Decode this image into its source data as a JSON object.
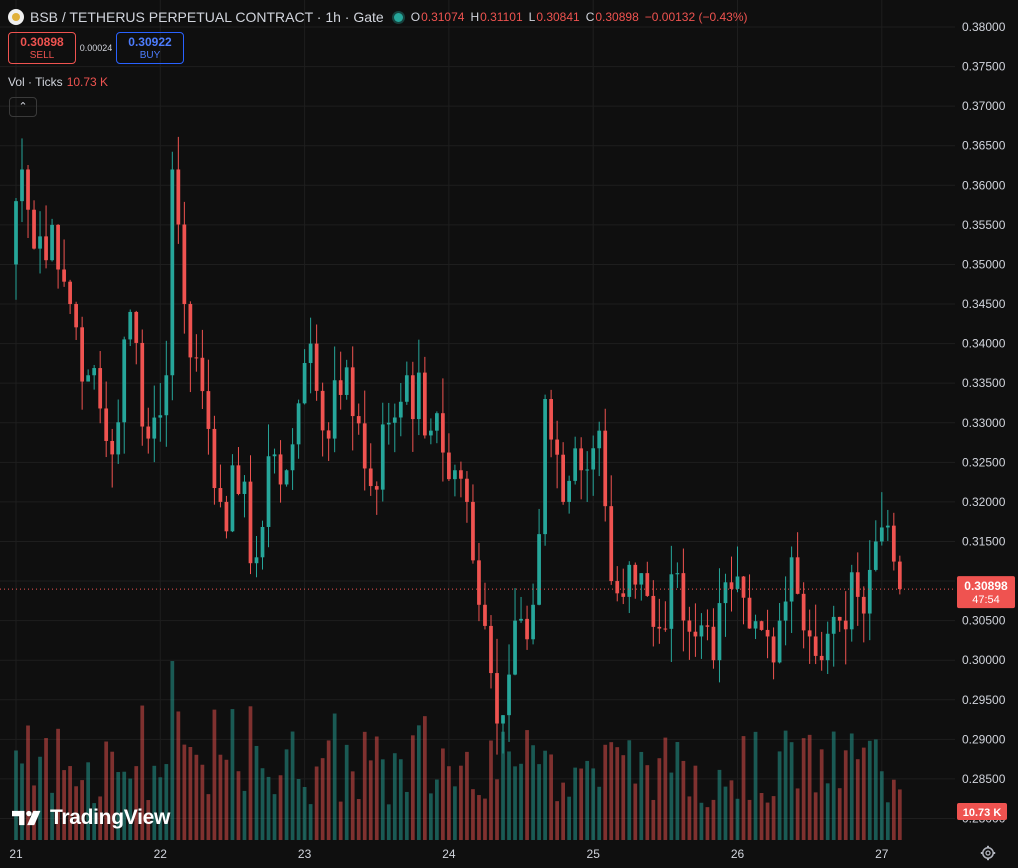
{
  "header": {
    "title": "BSB / TETHERUS PERPETUAL CONTRACT · 1h · Gate",
    "ohlc": [
      {
        "key": "O",
        "value": "0.31074"
      },
      {
        "key": "H",
        "value": "0.31101"
      },
      {
        "key": "L",
        "value": "0.30841"
      },
      {
        "key": "C",
        "value": "0.30898"
      }
    ],
    "change": "−0.00132 (−0.43%)"
  },
  "trade": {
    "sell_price": "0.30898",
    "sell_label": "SELL",
    "spread": "0.00024",
    "buy_price": "0.30922",
    "buy_label": "BUY"
  },
  "volume_legend": {
    "label": "Vol · Ticks",
    "value": "10.73 K"
  },
  "collapse_glyph": "⌃",
  "branding": "TradingView",
  "icons": {
    "symbol": "bsb-coin-icon",
    "settings": "gear-icon"
  },
  "colors": {
    "up": "#26a69a",
    "down": "#ef5350",
    "background": "#0f0f0f",
    "grid": "#1e1e1e"
  },
  "chart_data": {
    "type": "candlestick",
    "ylim": [
      0.28,
      0.38
    ],
    "y_ticks": [
      "0.38000",
      "0.37500",
      "0.37000",
      "0.36500",
      "0.36000",
      "0.35500",
      "0.35000",
      "0.34500",
      "0.34000",
      "0.33500",
      "0.33000",
      "0.32500",
      "0.32000",
      "0.31500",
      "0.31000",
      "0.30500",
      "0.30000",
      "0.29500",
      "0.29000",
      "0.28500",
      "0.28000"
    ],
    "x_ticks": [
      "21",
      "22",
      "23",
      "24",
      "25",
      "26",
      "27"
    ],
    "last_price": {
      "value": 0.30898,
      "label": "0.30898",
      "countdown": "47:54"
    },
    "volume_last_label": "10.73 K",
    "grid": true,
    "anchors": [
      {
        "t": "20 23:00",
        "p": 0.35
      },
      {
        "t": "21 00:00",
        "p": 0.358
      },
      {
        "t": "21 01:00",
        "p": 0.362
      },
      {
        "t": "21 03:00",
        "p": 0.352
      },
      {
        "t": "21 06:00",
        "p": 0.355
      },
      {
        "t": "21 09:00",
        "p": 0.345
      },
      {
        "t": "21 12:00",
        "p": 0.336
      },
      {
        "t": "21 16:00",
        "p": 0.326
      },
      {
        "t": "21 19:00",
        "p": 0.344
      },
      {
        "t": "21 22:00",
        "p": 0.328
      },
      {
        "t": "22 01:00",
        "p": 0.336
      },
      {
        "t": "22 02:00",
        "p": 0.362
      },
      {
        "t": "22 04:00",
        "p": 0.345
      },
      {
        "t": "22 07:00",
        "p": 0.334
      },
      {
        "t": "22 10:00",
        "p": 0.32
      },
      {
        "t": "22 13:00",
        "p": 0.321
      },
      {
        "t": "22 16:00",
        "p": 0.313
      },
      {
        "t": "22 19:00",
        "p": 0.326
      },
      {
        "t": "22 21:00",
        "p": 0.324
      },
      {
        "t": "23 01:00",
        "p": 0.34
      },
      {
        "t": "23 04:00",
        "p": 0.328
      },
      {
        "t": "23 07:00",
        "p": 0.337
      },
      {
        "t": "23 11:00",
        "p": 0.322
      },
      {
        "t": "23 14:00",
        "p": 0.33
      },
      {
        "t": "23 17:00",
        "p": 0.336
      },
      {
        "t": "23 21:00",
        "p": 0.329
      },
      {
        "t": "24 01:00",
        "p": 0.324
      },
      {
        "t": "24 03:00",
        "p": 0.32
      },
      {
        "t": "24 05:00",
        "p": 0.307
      },
      {
        "t": "24 08:00",
        "p": 0.292
      },
      {
        "t": "24 11:00",
        "p": 0.305
      },
      {
        "t": "24 14:00",
        "p": 0.307
      },
      {
        "t": "24 16:00",
        "p": 0.333
      },
      {
        "t": "24 19:00",
        "p": 0.32
      },
      {
        "t": "24 22:00",
        "p": 0.324
      },
      {
        "t": "25 01:00",
        "p": 0.329
      },
      {
        "t": "25 03:00",
        "p": 0.31
      },
      {
        "t": "25 05:00",
        "p": 0.308
      },
      {
        "t": "25 08:00",
        "p": 0.311
      },
      {
        "t": "25 11:00",
        "p": 0.304
      },
      {
        "t": "25 14:00",
        "p": 0.311
      },
      {
        "t": "25 17:00",
        "p": 0.303
      },
      {
        "t": "25 20:00",
        "p": 0.3
      },
      {
        "t": "25 23:00",
        "p": 0.309
      },
      {
        "t": "26 02:00",
        "p": 0.304
      },
      {
        "t": "26 05:00",
        "p": 0.303
      },
      {
        "t": "26 07:00",
        "p": 0.305
      },
      {
        "t": "26 09:00",
        "p": 0.313
      },
      {
        "t": "26 12:00",
        "p": 0.303
      },
      {
        "t": "26 14:00",
        "p": 0.3
      },
      {
        "t": "26 17:00",
        "p": 0.305
      },
      {
        "t": "26 20:00",
        "p": 0.308
      },
      {
        "t": "26 23:00",
        "p": 0.315
      },
      {
        "t": "27 01:00",
        "p": 0.317
      },
      {
        "t": "27 03:00",
        "p": 0.30898
      }
    ]
  }
}
